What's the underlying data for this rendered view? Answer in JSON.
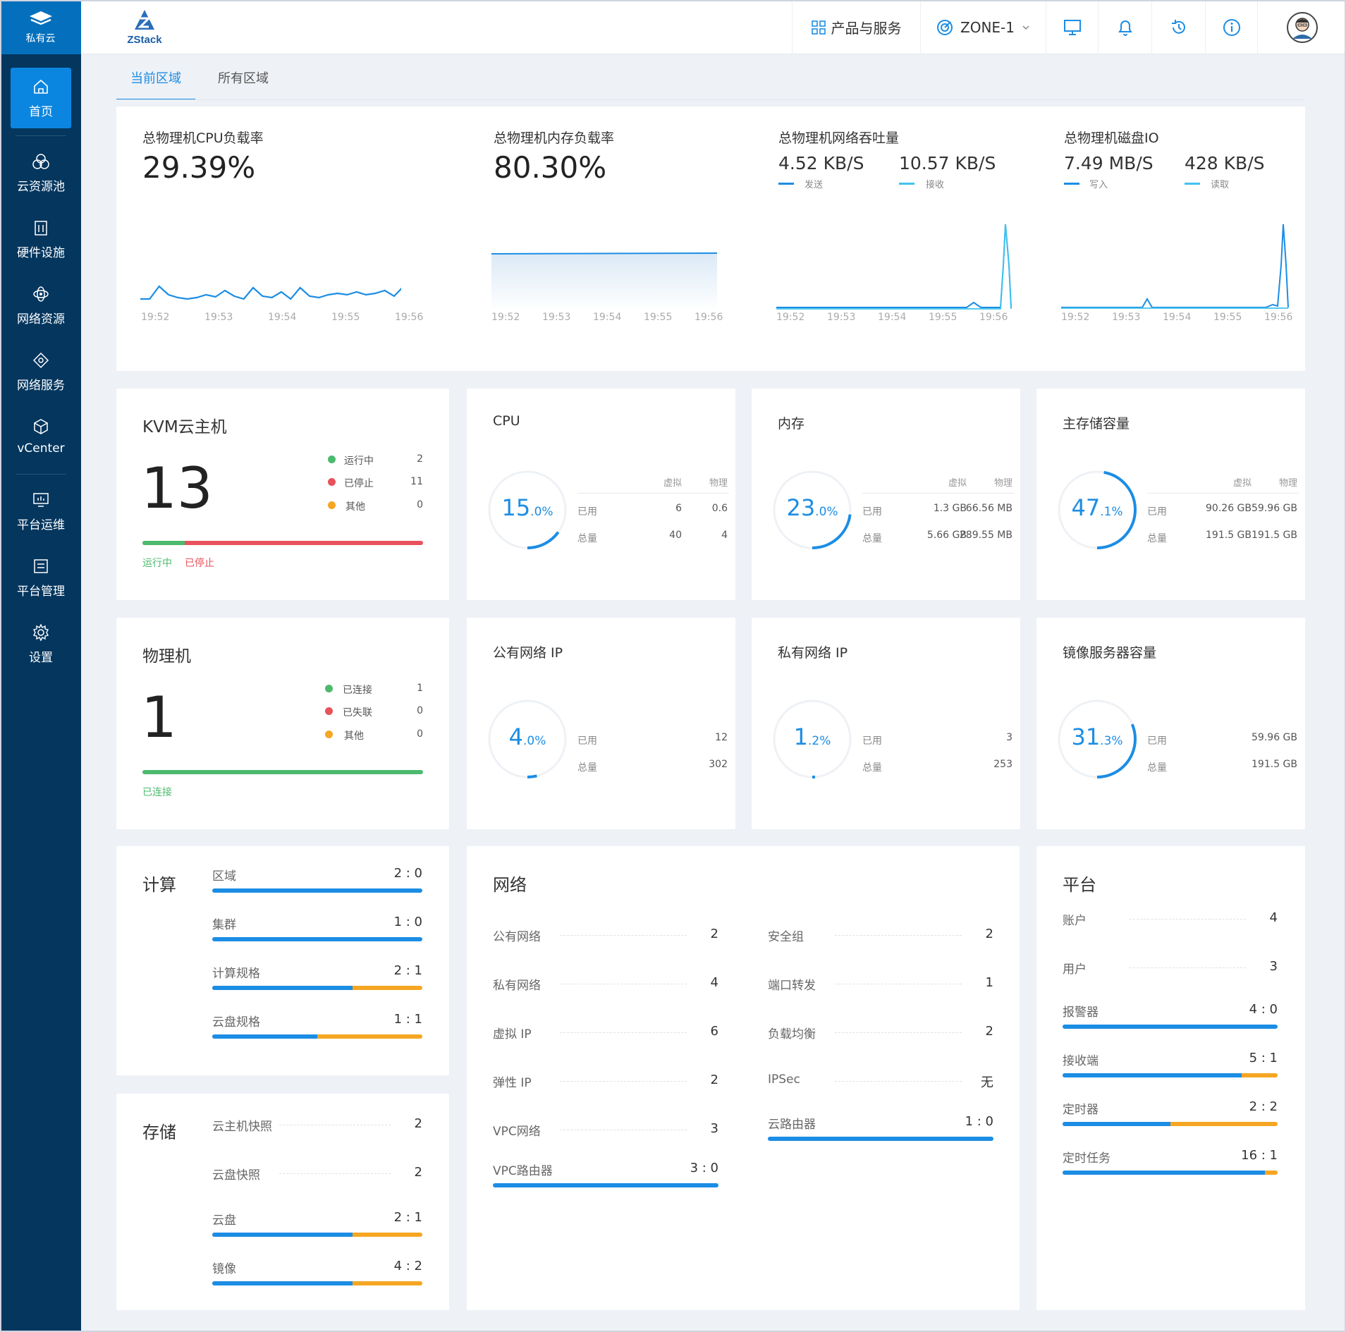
{
  "brand": {
    "label": "私有云"
  },
  "nav": [
    {
      "label": "首页",
      "icon": "home-icon"
    },
    {
      "label": "云资源池",
      "icon": "cloud-pool-icon"
    },
    {
      "label": "硬件设施",
      "icon": "hardware-icon"
    },
    {
      "label": "网络资源",
      "icon": "network-resource-icon"
    },
    {
      "label": "网络服务",
      "icon": "network-service-icon"
    },
    {
      "label": "vCenter",
      "icon": "cube-icon"
    },
    {
      "label": "平台运维",
      "icon": "monitor-icon"
    },
    {
      "label": "平台管理",
      "icon": "manage-icon"
    },
    {
      "label": "设置",
      "icon": "gear-icon"
    }
  ],
  "topbar": {
    "logo": "ZStack",
    "products": "产品与服务",
    "zone": "ZONE-1"
  },
  "tabs": [
    "当前区域",
    "所有区域"
  ],
  "metrics": {
    "cpu": {
      "title": "总物理机CPU负载率",
      "value": "29.39%"
    },
    "mem": {
      "title": "总物理机内存负载率",
      "value": "80.30%"
    },
    "net": {
      "title": "总物理机网络吞吐量",
      "v1": "4.52 KB/S",
      "l1": "发送",
      "v2": "10.57 KB/S",
      "l2": "接收"
    },
    "disk": {
      "title": "总物理机磁盘IO",
      "v1": "7.49 MB/S",
      "l1": "写入",
      "v2": "428 KB/S",
      "l2": "读取"
    },
    "times": [
      "19:52",
      "19:53",
      "19:54",
      "19:55",
      "19:56"
    ]
  },
  "kvm": {
    "title": "KVM云主机",
    "count": "13",
    "rows": [
      {
        "label": "运行中",
        "value": "2"
      },
      {
        "label": "已停止",
        "value": "11"
      },
      {
        "label": "其他",
        "value": "0"
      }
    ],
    "legend": [
      "运行中",
      "已停止"
    ],
    "fraction": 0.15
  },
  "hosts": {
    "title": "物理机",
    "count": "1",
    "rows": [
      {
        "label": "已连接",
        "value": "1"
      },
      {
        "label": "已失联",
        "value": "0"
      },
      {
        "label": "其他",
        "value": "0"
      }
    ],
    "legend": [
      "已连接"
    ],
    "fraction": 1
  },
  "cpu": {
    "title": "CPU",
    "pct": "15",
    "unit": ".0%",
    "fraction": 0.15,
    "hdr": [
      "虚拟",
      "物理"
    ],
    "used_label": "已用",
    "total_label": "总量",
    "used": [
      "6",
      "0.6"
    ],
    "total": [
      "40",
      "4"
    ]
  },
  "memory": {
    "title": "内存",
    "pct": "23",
    "unit": ".0%",
    "fraction": 0.23,
    "hdr": [
      "虚拟",
      "物理"
    ],
    "used_label": "已用",
    "total_label": "总量",
    "used": [
      "1.3 GB",
      "66.56 MB"
    ],
    "total": [
      "5.66 GB",
      "289.55 MB"
    ]
  },
  "pstorage": {
    "title": "主存储容量",
    "pct": "47",
    "unit": ".1%",
    "fraction": 0.471,
    "hdr": [
      "虚拟",
      "物理"
    ],
    "used_label": "已用",
    "total_label": "总量",
    "used": [
      "90.26 GB",
      "59.96 GB"
    ],
    "total": [
      "191.5 GB",
      "191.5 GB"
    ]
  },
  "pubip": {
    "title": "公有网络 IP",
    "pct": "4",
    "unit": ".0%",
    "fraction": 0.04,
    "used_label": "已用",
    "total_label": "总量",
    "used": "12",
    "total": "302"
  },
  "priip": {
    "title": "私有网络 IP",
    "pct": "1",
    "unit": ".2%",
    "fraction": 0.012,
    "used_label": "已用",
    "total_label": "总量",
    "used": "3",
    "total": "253"
  },
  "imgstore": {
    "title": "镜像服务器容量",
    "pct": "31",
    "unit": ".3%",
    "fraction": 0.313,
    "used_label": "已用",
    "total_label": "总量",
    "used": "59.96 GB",
    "total": "191.5 GB"
  },
  "compute": {
    "title": "计算",
    "rows": [
      {
        "label": "区域",
        "value": "2 : 0",
        "frac": 1
      },
      {
        "label": "集群",
        "value": "1 : 0",
        "frac": 1
      },
      {
        "label": "计算规格",
        "value": "2 : 1",
        "frac": 0.667
      },
      {
        "label": "云盘规格",
        "value": "1 : 1",
        "frac": 0.5
      }
    ]
  },
  "storage": {
    "title": "存储",
    "plain": [
      {
        "label": "云主机快照",
        "value": "2"
      },
      {
        "label": "云盘快照",
        "value": "2"
      }
    ],
    "rows": [
      {
        "label": "云盘",
        "value": "2 : 1",
        "frac": 0.667
      },
      {
        "label": "镜像",
        "value": "4 : 2",
        "frac": 0.667
      }
    ]
  },
  "network": {
    "title": "网络",
    "left": [
      {
        "label": "公有网络",
        "value": "2"
      },
      {
        "label": "私有网络",
        "value": "4"
      },
      {
        "label": "虚拟 IP",
        "value": "6"
      },
      {
        "label": "弹性 IP",
        "value": "2"
      },
      {
        "label": "VPC网络",
        "value": "3"
      }
    ],
    "left_bar": {
      "label": "VPC路由器",
      "value": "3 : 0",
      "frac": 1
    },
    "right": [
      {
        "label": "安全组",
        "value": "2"
      },
      {
        "label": "端口转发",
        "value": "1"
      },
      {
        "label": "负载均衡",
        "value": "2"
      },
      {
        "label": "IPSec",
        "value": "无"
      }
    ],
    "right_bar": {
      "label": "云路由器",
      "value": "1 : 0",
      "frac": 1
    }
  },
  "platform": {
    "title": "平台",
    "plain": [
      {
        "label": "账户",
        "value": "4"
      },
      {
        "label": "用户",
        "value": "3"
      }
    ],
    "rows": [
      {
        "label": "报警器",
        "value": "4 : 0",
        "frac": 1
      },
      {
        "label": "接收端",
        "value": "5 : 1",
        "frac": 0.833
      },
      {
        "label": "定时器",
        "value": "2 : 2",
        "frac": 0.5
      },
      {
        "label": "定时任务",
        "value": "16 : 1",
        "frac": 0.941
      }
    ]
  },
  "colors": {
    "blue": "#1c8de4",
    "orange": "#f5a623",
    "green": "#4cba6d",
    "red": "#e8525b",
    "ring_bg": "#eef1f5"
  }
}
